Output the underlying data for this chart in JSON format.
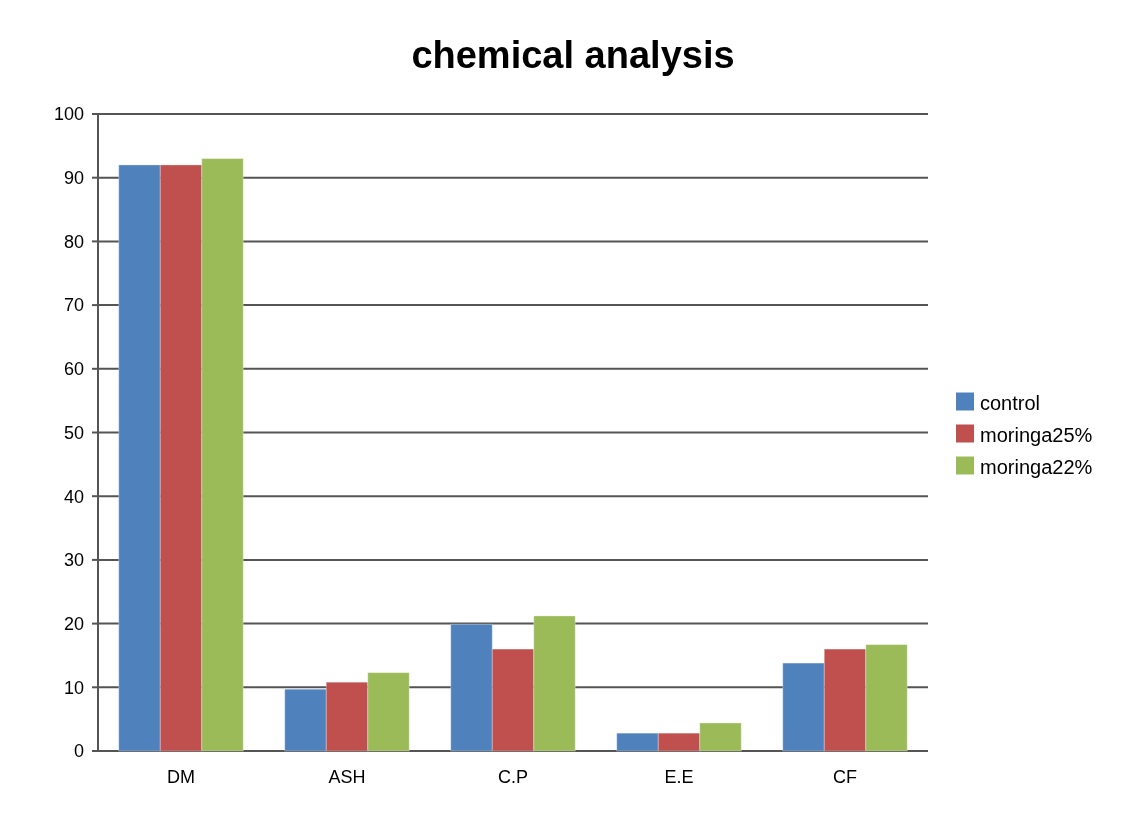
{
  "chart_data": {
    "type": "bar",
    "title": "chemical analysis",
    "categories": [
      "DM",
      "ASH",
      "C.P",
      "E.E",
      "CF"
    ],
    "series": [
      {
        "name": "control",
        "color": "#4f81bd",
        "values": [
          92,
          9.7,
          19.9,
          2.8,
          13.8
        ]
      },
      {
        "name": "moringa25%",
        "color": "#c0504d",
        "values": [
          92,
          10.8,
          16,
          2.8,
          16
        ]
      },
      {
        "name": "moringa22%",
        "color": "#9bbb59",
        "values": [
          93,
          12.3,
          21.2,
          4.4,
          16.7
        ]
      }
    ],
    "ylim": [
      0,
      100
    ],
    "yticks": [
      0,
      10,
      20,
      30,
      40,
      50,
      60,
      70,
      80,
      90,
      100
    ],
    "grid": "y",
    "legend": "right"
  }
}
